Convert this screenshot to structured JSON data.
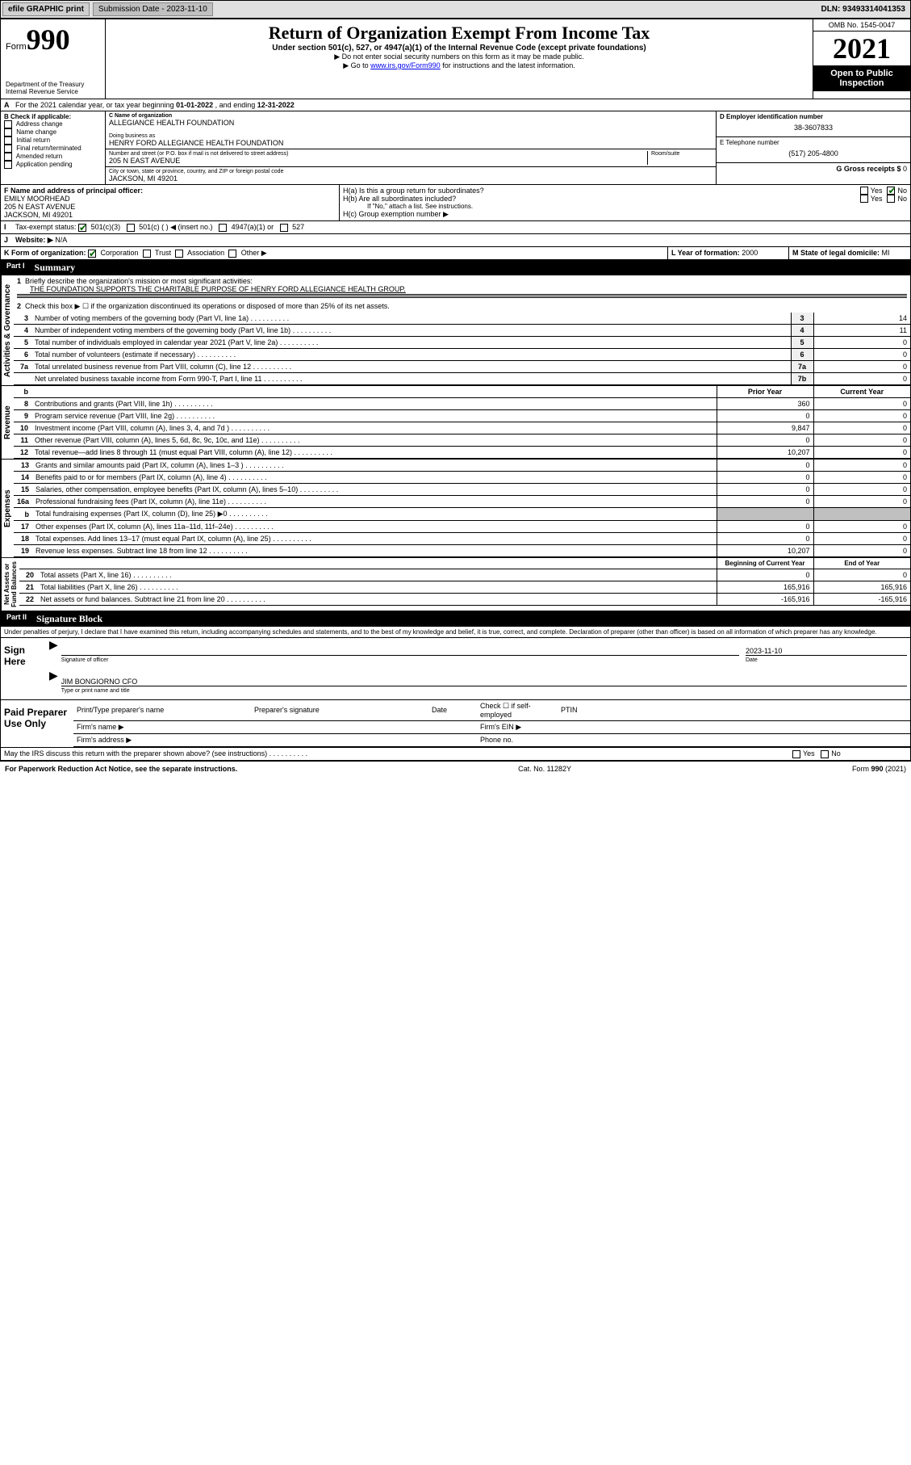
{
  "topbar": {
    "efile": "efile GRAPHIC print",
    "submission_label": "Submission Date - 2023-11-10",
    "dln": "DLN: 93493314041353"
  },
  "header": {
    "form_word": "Form",
    "form_num": "990",
    "title": "Return of Organization Exempt From Income Tax",
    "subtitle": "Under section 501(c), 527, or 4947(a)(1) of the Internal Revenue Code (except private foundations)",
    "note1": "▶ Do not enter social security numbers on this form as it may be made public.",
    "note2_pre": "▶ Go to ",
    "note2_link": "www.irs.gov/Form990",
    "note2_post": " for instructions and the latest information.",
    "dept": "Department of the Treasury\nInternal Revenue Service",
    "omb": "OMB No. 1545-0047",
    "year": "2021",
    "open": "Open to Public Inspection"
  },
  "A": {
    "text_pre": "For the 2021 calendar year, or tax year beginning ",
    "begin": "01-01-2022",
    "mid": " , and ending ",
    "end": "12-31-2022"
  },
  "B": {
    "label": "B Check if applicable:",
    "items": [
      "Address change",
      "Name change",
      "Initial return",
      "Final return/terminated",
      "Amended return",
      "Application pending"
    ]
  },
  "C": {
    "name_label": "C Name of organization",
    "name": "ALLEGIANCE HEALTH FOUNDATION",
    "dba_label": "Doing business as",
    "dba": "HENRY FORD ALLEGIANCE HEALTH FOUNDATION",
    "street_label": "Number and street (or P.O. box if mail is not delivered to street address)",
    "room_label": "Room/suite",
    "street": "205 N EAST AVENUE",
    "city_label": "City or town, state or province, country, and ZIP or foreign postal code",
    "city": "JACKSON, MI  49201"
  },
  "D": {
    "label": "D Employer identification number",
    "value": "38-3607833"
  },
  "E": {
    "label": "E Telephone number",
    "value": "(517) 205-4800"
  },
  "G": {
    "label": "G Gross receipts $",
    "value": "0"
  },
  "F": {
    "label": "F Name and address of principal officer:",
    "name": "EMILY MOORHEAD",
    "street": "205 N EAST AVENUE",
    "city": "JACKSON, MI  49201"
  },
  "H": {
    "a": "H(a)  Is this a group return for subordinates?",
    "b": "H(b)  Are all subordinates included?",
    "b_note": "If \"No,\" attach a list. See instructions.",
    "c": "H(c)  Group exemption number ▶",
    "yes": "Yes",
    "no": "No"
  },
  "I": {
    "label": "Tax-exempt status:",
    "opts": [
      "501(c)(3)",
      "501(c) (  ) ◀ (insert no.)",
      "4947(a)(1) or",
      "527"
    ]
  },
  "J": {
    "label": "Website: ▶",
    "value": "N/A"
  },
  "K": {
    "label": "K Form of organization:",
    "opts": [
      "Corporation",
      "Trust",
      "Association",
      "Other ▶"
    ]
  },
  "L": {
    "label": "L Year of formation:",
    "value": "2000"
  },
  "M": {
    "label": "M State of legal domicile:",
    "value": "MI"
  },
  "partI": {
    "num": "Part I",
    "title": "Summary"
  },
  "summary": {
    "l1_label": "Briefly describe the organization's mission or most significant activities:",
    "l1_text": "THE FOUNDATION SUPPORTS THE CHARITABLE PURPOSE OF HENRY FORD ALLEGIANCE HEALTH GROUP.",
    "l2": "Check this box ▶ ☐  if the organization discontinued its operations or disposed of more than 25% of its net assets.",
    "lines_ag": [
      {
        "n": "3",
        "t": "Number of voting members of the governing body (Part VI, line 1a)",
        "box": "3",
        "v": "14"
      },
      {
        "n": "4",
        "t": "Number of independent voting members of the governing body (Part VI, line 1b)",
        "box": "4",
        "v": "11"
      },
      {
        "n": "5",
        "t": "Total number of individuals employed in calendar year 2021 (Part V, line 2a)",
        "box": "5",
        "v": "0"
      },
      {
        "n": "6",
        "t": "Total number of volunteers (estimate if necessary)",
        "box": "6",
        "v": "0"
      },
      {
        "n": "7a",
        "t": "Total unrelated business revenue from Part VIII, column (C), line 12",
        "box": "7a",
        "v": "0"
      },
      {
        "n": "",
        "t": "Net unrelated business taxable income from Form 990-T, Part I, line 11",
        "box": "7b",
        "v": "0"
      }
    ],
    "col_prior": "Prior Year",
    "col_current": "Current Year",
    "revenue": [
      {
        "n": "8",
        "t": "Contributions and grants (Part VIII, line 1h)",
        "p": "360",
        "c": "0"
      },
      {
        "n": "9",
        "t": "Program service revenue (Part VIII, line 2g)",
        "p": "0",
        "c": "0"
      },
      {
        "n": "10",
        "t": "Investment income (Part VIII, column (A), lines 3, 4, and 7d )",
        "p": "9,847",
        "c": "0"
      },
      {
        "n": "11",
        "t": "Other revenue (Part VIII, column (A), lines 5, 6d, 8c, 9c, 10c, and 11e)",
        "p": "0",
        "c": "0"
      },
      {
        "n": "12",
        "t": "Total revenue—add lines 8 through 11 (must equal Part VIII, column (A), line 12)",
        "p": "10,207",
        "c": "0"
      }
    ],
    "expenses": [
      {
        "n": "13",
        "t": "Grants and similar amounts paid (Part IX, column (A), lines 1–3 )",
        "p": "0",
        "c": "0"
      },
      {
        "n": "14",
        "t": "Benefits paid to or for members (Part IX, column (A), line 4)",
        "p": "0",
        "c": "0"
      },
      {
        "n": "15",
        "t": "Salaries, other compensation, employee benefits (Part IX, column (A), lines 5–10)",
        "p": "0",
        "c": "0"
      },
      {
        "n": "16a",
        "t": "Professional fundraising fees (Part IX, column (A), line 11e)",
        "p": "0",
        "c": "0"
      },
      {
        "n": "b",
        "t": "Total fundraising expenses (Part IX, column (D), line 25) ▶0",
        "p": "",
        "c": "",
        "shade": true
      },
      {
        "n": "17",
        "t": "Other expenses (Part IX, column (A), lines 11a–11d, 11f–24e)",
        "p": "0",
        "c": "0"
      },
      {
        "n": "18",
        "t": "Total expenses. Add lines 13–17 (must equal Part IX, column (A), line 25)",
        "p": "0",
        "c": "0"
      },
      {
        "n": "19",
        "t": "Revenue less expenses. Subtract line 18 from line 12",
        "p": "10,207",
        "c": "0"
      }
    ],
    "col_begin": "Beginning of Current Year",
    "col_end": "End of Year",
    "netassets": [
      {
        "n": "20",
        "t": "Total assets (Part X, line 16)",
        "p": "0",
        "c": "0"
      },
      {
        "n": "21",
        "t": "Total liabilities (Part X, line 26)",
        "p": "165,916",
        "c": "165,916"
      },
      {
        "n": "22",
        "t": "Net assets or fund balances. Subtract line 21 from line 20",
        "p": "-165,916",
        "c": "-165,916"
      }
    ]
  },
  "vtabs": {
    "ag": "Activities & Governance",
    "rev": "Revenue",
    "exp": "Expenses",
    "na": "Net Assets or\nFund Balances"
  },
  "partII": {
    "num": "Part II",
    "title": "Signature Block"
  },
  "sig": {
    "penalty": "Under penalties of perjury, I declare that I have examined this return, including accompanying schedules and statements, and to the best of my knowledge and belief, it is true, correct, and complete. Declaration of preparer (other than officer) is based on all information of which preparer has any knowledge.",
    "sign_here": "Sign Here",
    "sig_officer": "Signature of officer",
    "date": "Date",
    "sig_date": "2023-11-10",
    "name_title": "JIM BONGIORNO CFO",
    "name_title_cap": "Type or print name and title",
    "paid": "Paid Preparer Use Only",
    "p_name": "Print/Type preparer's name",
    "p_sig": "Preparer's signature",
    "p_date": "Date",
    "p_check": "Check ☐ if self-employed",
    "ptin": "PTIN",
    "firm_name": "Firm's name  ▶",
    "firm_ein": "Firm's EIN ▶",
    "firm_addr": "Firm's address ▶",
    "phone": "Phone no.",
    "may_irs": "May the IRS discuss this return with the preparer shown above? (see instructions)",
    "yes": "Yes",
    "no": "No"
  },
  "footer": {
    "pra": "For Paperwork Reduction Act Notice, see the separate instructions.",
    "cat": "Cat. No. 11282Y",
    "form": "Form 990 (2021)"
  }
}
